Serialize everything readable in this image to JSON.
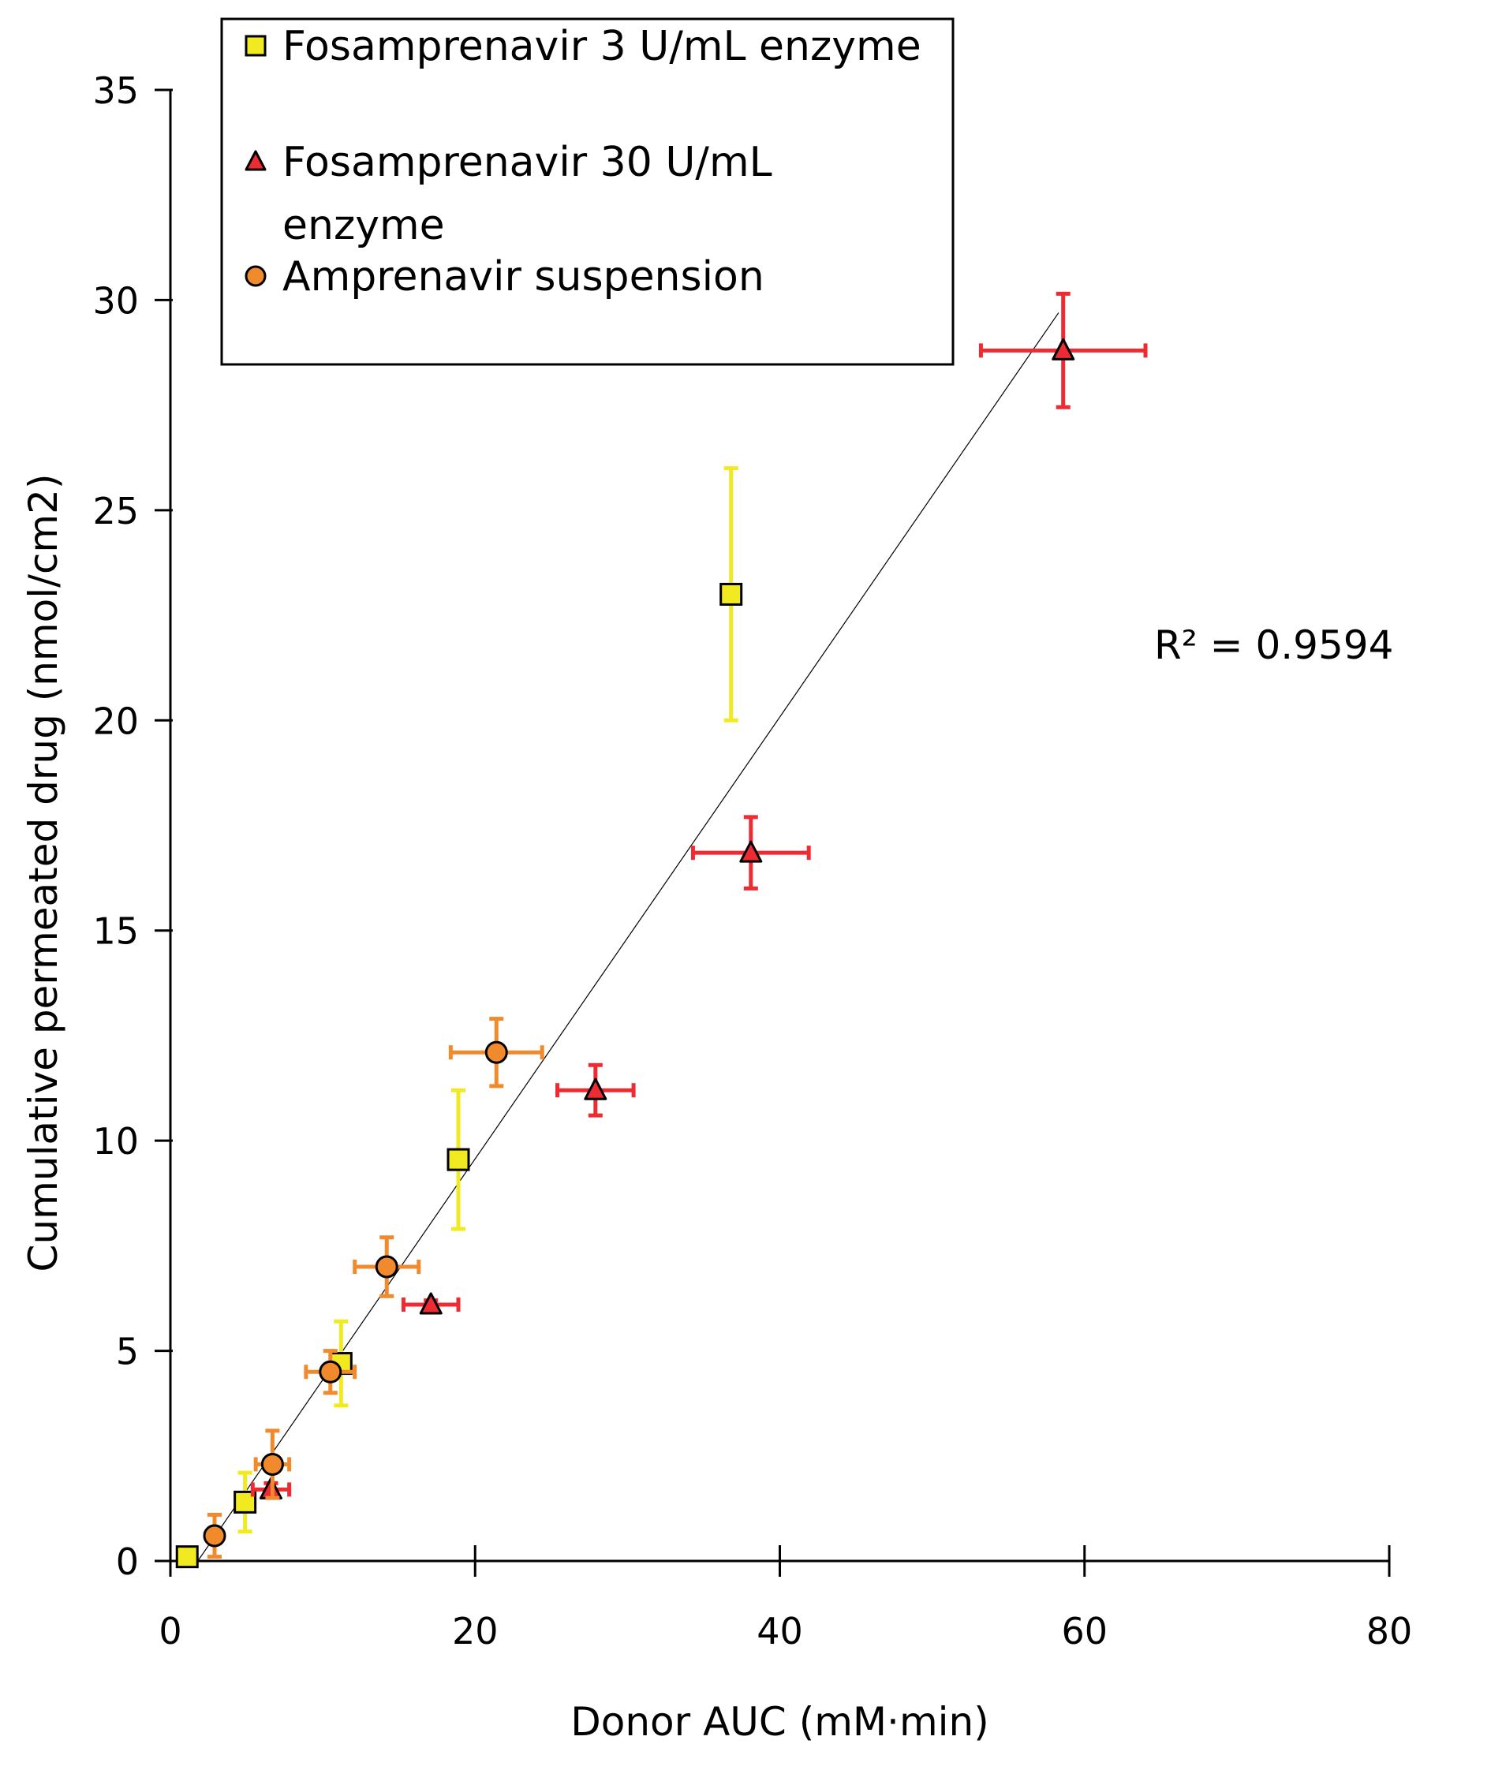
{
  "chart_data": {
    "type": "scatter",
    "title": "",
    "xlabel": "Donor AUC (mM·min)",
    "ylabel": "Cumulative permeated drug (nmol/cm2)",
    "xlim": [
      0,
      80
    ],
    "ylim": [
      0,
      35
    ],
    "xticks": [
      "0",
      "20",
      "40",
      "60",
      "80"
    ],
    "yticks": [
      "0",
      "5",
      "10",
      "15",
      "20",
      "25",
      "30",
      "35"
    ],
    "grid": false,
    "legend_position": "top-left",
    "annotation": "R² = 0.9594",
    "trendline": {
      "x": [
        1.8,
        58.3
      ],
      "y": [
        0,
        29.7
      ],
      "color": "#000000"
    },
    "series": [
      {
        "name": "Fosamprenavir 3 U/mL enzyme",
        "legend_lines": [
          "Fosamprenavir 3 U/mL enzyme"
        ],
        "marker": "square",
        "color": "#f2ea20",
        "error_color": "#f2ea20",
        "points": [
          {
            "x": 1.1,
            "y": 0.1,
            "xerr": 0,
            "yerr": 0
          },
          {
            "x": 4.9,
            "y": 1.4,
            "xerr": 0,
            "yerr": 0.7
          },
          {
            "x": 11.2,
            "y": 4.7,
            "xerr": 0,
            "yerr": 1.0
          },
          {
            "x": 18.9,
            "y": 9.55,
            "xerr": 0,
            "yerr": 1.65
          },
          {
            "x": 36.8,
            "y": 23.0,
            "xerr": 0,
            "yerr": 3.0
          }
        ]
      },
      {
        "name": "Fosamprenavir 30 U/mL enzyme",
        "legend_lines": [
          "Fosamprenavir 30 U/mL",
          "enzyme"
        ],
        "marker": "triangle",
        "color": "#ee2a33",
        "error_color": "#ee2a33",
        "points": [
          {
            "x": 6.6,
            "y": 1.7,
            "xerr": 1.2,
            "yerr": 0.15
          },
          {
            "x": 17.1,
            "y": 6.1,
            "xerr": 1.8,
            "yerr": 0.1
          },
          {
            "x": 27.9,
            "y": 11.2,
            "xerr": 2.5,
            "yerr": 0.6
          },
          {
            "x": 38.1,
            "y": 16.85,
            "xerr": 3.8,
            "yerr": 0.85
          },
          {
            "x": 58.6,
            "y": 28.8,
            "xerr": 5.4,
            "yerr": 1.35
          }
        ]
      },
      {
        "name": "Amprenavir suspension",
        "legend_lines": [
          "Amprenavir suspension"
        ],
        "marker": "circle",
        "color": "#f08a2c",
        "error_color": "#f08a2c",
        "points": [
          {
            "x": 2.9,
            "y": 0.6,
            "xerr": 0,
            "yerr": 0.5
          },
          {
            "x": 6.7,
            "y": 2.3,
            "xerr": 1.1,
            "yerr": 0.8
          },
          {
            "x": 10.5,
            "y": 4.5,
            "xerr": 1.6,
            "yerr": 0.5
          },
          {
            "x": 14.2,
            "y": 7.0,
            "xerr": 2.1,
            "yerr": 0.7
          },
          {
            "x": 21.4,
            "y": 12.1,
            "xerr": 3.0,
            "yerr": 0.8
          }
        ]
      }
    ]
  }
}
